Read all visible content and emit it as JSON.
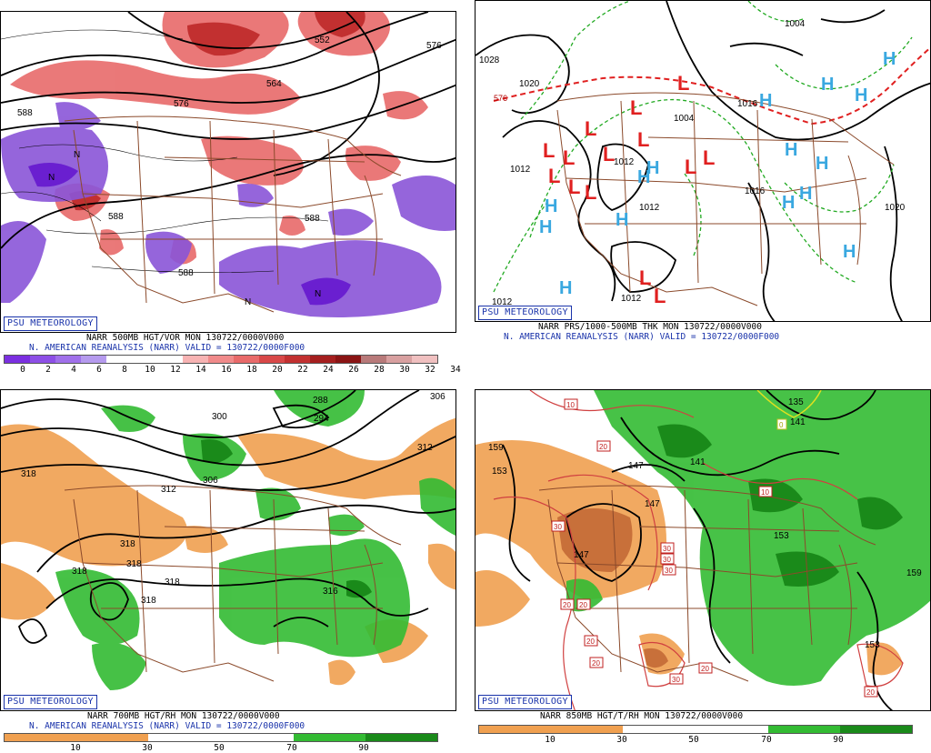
{
  "panels": [
    {
      "badge": "PSU METEOROLOGY",
      "caption1": "NARR 500MB HGT/VOR MON  130722/0000V000",
      "caption2": "N. AMERICAN REANALYSIS (NARR) VALID = 130722/0000F000",
      "legend": [
        "0",
        "2",
        "4",
        "6",
        "8",
        "10",
        "12",
        "14",
        "16",
        "18",
        "20",
        "22",
        "24",
        "26",
        "28",
        "30",
        "32",
        "34"
      ],
      "contour_labels": [
        "552",
        "564",
        "576",
        "588",
        "588",
        "588",
        "588",
        "576"
      ],
      "vort_center_label": "N"
    },
    {
      "badge": "PSU METEOROLOGY",
      "caption1": "NARR PRS/1000-500MB THK MON  130722/0000V000",
      "caption2": "N. AMERICAN REANALYSIS (NARR) VALID = 130722/0000F000",
      "contour_labels": [
        "1028",
        "1020",
        "1012",
        "1012",
        "1012",
        "1004",
        "1004",
        "1012",
        "1016",
        "1020",
        "1012",
        "576",
        "1016"
      ],
      "high_symbol": "H",
      "low_symbol": "L"
    },
    {
      "badge": "PSU METEOROLOGY",
      "caption1": "NARR 700MB HGT/RH MON  130722/0000V000",
      "caption2": "N. AMERICAN REANALYSIS (NARR) VALID = 130722/0000F000",
      "legend": [
        "10",
        "30",
        "50",
        "70",
        "90"
      ],
      "contour_labels": [
        "288",
        "294",
        "300",
        "306",
        "306",
        "312",
        "312",
        "318",
        "318",
        "318",
        "318",
        "318",
        "318",
        "316"
      ]
    },
    {
      "badge": "PSU METEOROLOGY",
      "caption1": "NARR 850MB HGT/T/RH MON  130722/0000V000",
      "legend": [
        "10",
        "30",
        "50",
        "70",
        "90"
      ],
      "contour_labels": [
        "135",
        "141",
        "147",
        "147",
        "141",
        "153",
        "159",
        "153",
        "147",
        "159",
        "153"
      ],
      "temp_labels": [
        "10",
        "20",
        "30",
        "30",
        "30",
        "30",
        "20",
        "20",
        "20",
        "20",
        "30",
        "20",
        "20",
        "10",
        "0"
      ]
    }
  ],
  "colors": {
    "vor_pos": "#e05050",
    "vor_neg": "#8a55d8",
    "rh_moist": "#33bb33",
    "rh_dry": "#f0a050",
    "thickness": "#e02020",
    "isobar_dashed": "#22aa22",
    "borders": "#8b4a2b",
    "high": "#3aa8e0",
    "low": "#e02020"
  }
}
